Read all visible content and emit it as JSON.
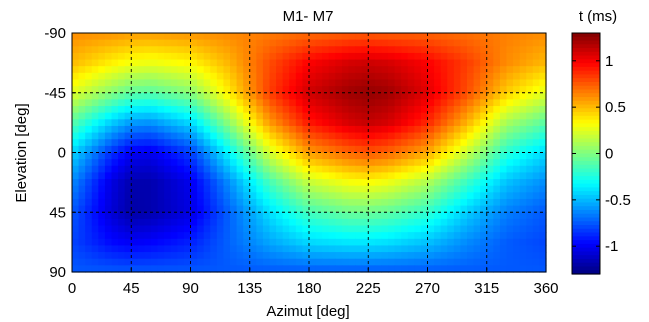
{
  "chart_data": {
    "type": "heatmap",
    "title": "M1- M7",
    "xlabel": "Azimut [deg]",
    "ylabel": "Elevation [deg]",
    "colorbar_label": "t (ms)",
    "xlim": [
      0,
      360
    ],
    "ylim": [
      -90,
      90
    ],
    "y_direction": "down",
    "x_ticks": [
      0,
      45,
      90,
      135,
      180,
      225,
      270,
      315,
      360
    ],
    "y_ticks": [
      -90,
      -45,
      0,
      45,
      90
    ],
    "colorbar_range": [
      -1.3,
      1.3
    ],
    "colorbar_ticks": [
      1,
      0.5,
      0,
      -0.5,
      -1
    ],
    "colormap": "jet",
    "grid": true,
    "grid_style": "dashed",
    "field": {
      "x": [
        0,
        30,
        45,
        60,
        90,
        120,
        150,
        180,
        210,
        225,
        240,
        270,
        300,
        330,
        360
      ],
      "y": [
        -90,
        -67.5,
        -45,
        -22.5,
        0,
        22.5,
        45,
        67.5,
        90
      ],
      "values": [
        [
          0.62,
          0.6,
          0.58,
          0.58,
          0.6,
          0.63,
          0.66,
          0.7,
          0.73,
          0.74,
          0.73,
          0.72,
          0.69,
          0.65,
          0.62
        ],
        [
          0.5,
          0.36,
          0.3,
          0.28,
          0.34,
          0.52,
          0.78,
          0.98,
          1.08,
          1.1,
          1.08,
          0.98,
          0.82,
          0.62,
          0.5
        ],
        [
          0.25,
          0.02,
          -0.08,
          -0.1,
          0.02,
          0.38,
          0.82,
          1.1,
          1.22,
          1.25,
          1.22,
          1.05,
          0.78,
          0.45,
          0.25
        ],
        [
          -0.1,
          -0.45,
          -0.58,
          -0.6,
          -0.42,
          0.05,
          0.58,
          0.92,
          1.08,
          1.12,
          1.08,
          0.88,
          0.52,
          0.1,
          -0.1
        ],
        [
          -0.42,
          -0.85,
          -1.0,
          -1.02,
          -0.82,
          -0.32,
          0.22,
          0.58,
          0.72,
          0.76,
          0.72,
          0.55,
          0.18,
          -0.22,
          -0.42
        ],
        [
          -0.62,
          -1.05,
          -1.18,
          -1.18,
          -1.02,
          -0.6,
          -0.15,
          0.18,
          0.3,
          0.32,
          0.28,
          0.12,
          -0.18,
          -0.48,
          -0.62
        ],
        [
          -0.75,
          -1.08,
          -1.2,
          -1.18,
          -1.05,
          -0.72,
          -0.4,
          -0.15,
          -0.05,
          -0.05,
          -0.08,
          -0.2,
          -0.45,
          -0.65,
          -0.75
        ],
        [
          -0.8,
          -0.96,
          -1.0,
          -0.98,
          -0.9,
          -0.72,
          -0.55,
          -0.42,
          -0.38,
          -0.38,
          -0.4,
          -0.48,
          -0.62,
          -0.74,
          -0.8
        ],
        [
          -0.75,
          -0.75,
          -0.75,
          -0.75,
          -0.75,
          -0.75,
          -0.75,
          -0.75,
          -0.75,
          -0.75,
          -0.75,
          -0.75,
          -0.75,
          -0.75,
          -0.75
        ]
      ]
    }
  }
}
